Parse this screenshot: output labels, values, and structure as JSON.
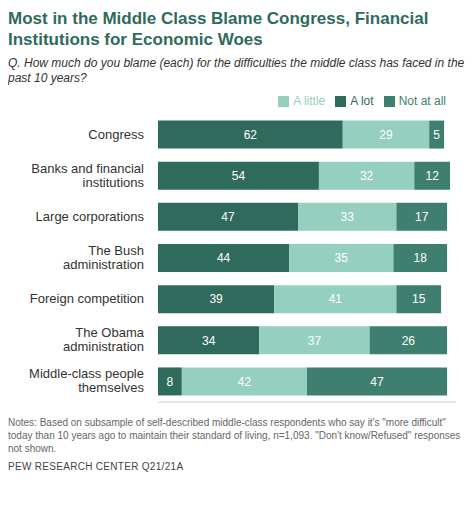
{
  "chart_data": {
    "type": "bar",
    "orientation": "horizontal",
    "stacked": true,
    "data_labels": true,
    "tick_labels": "y",
    "grid": false,
    "legend": "top",
    "title": "Most in the Middle Class Blame Congress, Financial Institutions for Economic Woes",
    "subtitle": "Q. How much do you blame (each) for the difficulties the middle class has faced in the past 10 years?",
    "notes": "Notes: Based on subsample of self-described middle-class respondents who say it's \"more difficult\" today than 10 years ago to maintain their standard of living, n=1,093. \"Don't know/Refused\" responses not shown.",
    "source": "PEW RESEARCH CENTER Q21/21A",
    "categories": [
      "Congress",
      "Banks and financial institutions",
      "Large corporations",
      "The Bush administration",
      "Foreign competition",
      "The Obama administration",
      "Middle-class people themselves"
    ],
    "series": [
      {
        "name": "A lot",
        "color": "#2f6b5c",
        "values": [
          62,
          54,
          47,
          44,
          39,
          34,
          8
        ]
      },
      {
        "name": "A little",
        "color": "#94cfc0",
        "values": [
          29,
          32,
          33,
          35,
          41,
          37,
          42
        ]
      },
      {
        "name": "Not at all",
        "color": "#3f7f70",
        "values": [
          5,
          12,
          17,
          18,
          15,
          26,
          47
        ]
      }
    ],
    "xlim": [
      0,
      100
    ]
  }
}
